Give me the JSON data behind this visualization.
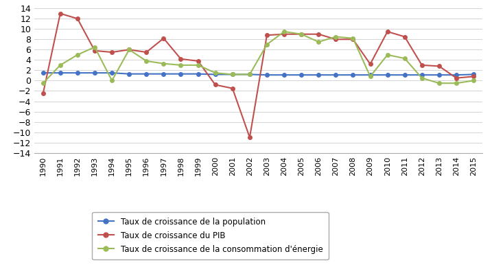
{
  "years": [
    1990,
    1991,
    1992,
    1993,
    1994,
    1995,
    1996,
    1997,
    1998,
    1999,
    2000,
    2001,
    2002,
    2003,
    2004,
    2005,
    2006,
    2007,
    2008,
    2009,
    2010,
    2011,
    2012,
    2013,
    2014,
    2015
  ],
  "population": [
    1.5,
    1.5,
    1.5,
    1.5,
    1.5,
    1.3,
    1.3,
    1.3,
    1.3,
    1.3,
    1.2,
    1.2,
    1.2,
    1.1,
    1.1,
    1.1,
    1.1,
    1.1,
    1.1,
    1.1,
    1.1,
    1.1,
    1.1,
    1.1,
    1.1,
    1.2
  ],
  "pib": [
    -2.5,
    13.0,
    12.0,
    5.8,
    5.5,
    6.0,
    5.5,
    8.2,
    4.2,
    3.8,
    -0.8,
    -1.5,
    -11.0,
    8.8,
    9.0,
    9.0,
    9.0,
    8.0,
    8.0,
    3.2,
    9.5,
    8.5,
    3.0,
    2.8,
    0.5,
    0.8
  ],
  "energy": [
    -0.5,
    3.0,
    5.0,
    6.5,
    0.0,
    6.0,
    3.8,
    3.3,
    3.0,
    3.0,
    1.5,
    1.2,
    1.2,
    7.0,
    9.5,
    9.0,
    7.5,
    8.5,
    8.2,
    0.8,
    5.0,
    4.3,
    0.5,
    -0.5,
    -0.5,
    0.0
  ],
  "pop_color": "#4472C4",
  "pib_color": "#C0504D",
  "energy_color": "#9BBB59",
  "pop_label": "Taux de croissance de la population",
  "pib_label": "Taux de croissance du PIB",
  "energy_label": "Taux de croissance de la consommation d'énergie",
  "ylim": [
    -14,
    14
  ],
  "yticks": [
    -14,
    -12,
    -10,
    -8,
    -6,
    -4,
    -2,
    0,
    2,
    4,
    6,
    8,
    10,
    12,
    14
  ],
  "bg_color": "#FFFFFF",
  "grid_color": "#CCCCCC"
}
